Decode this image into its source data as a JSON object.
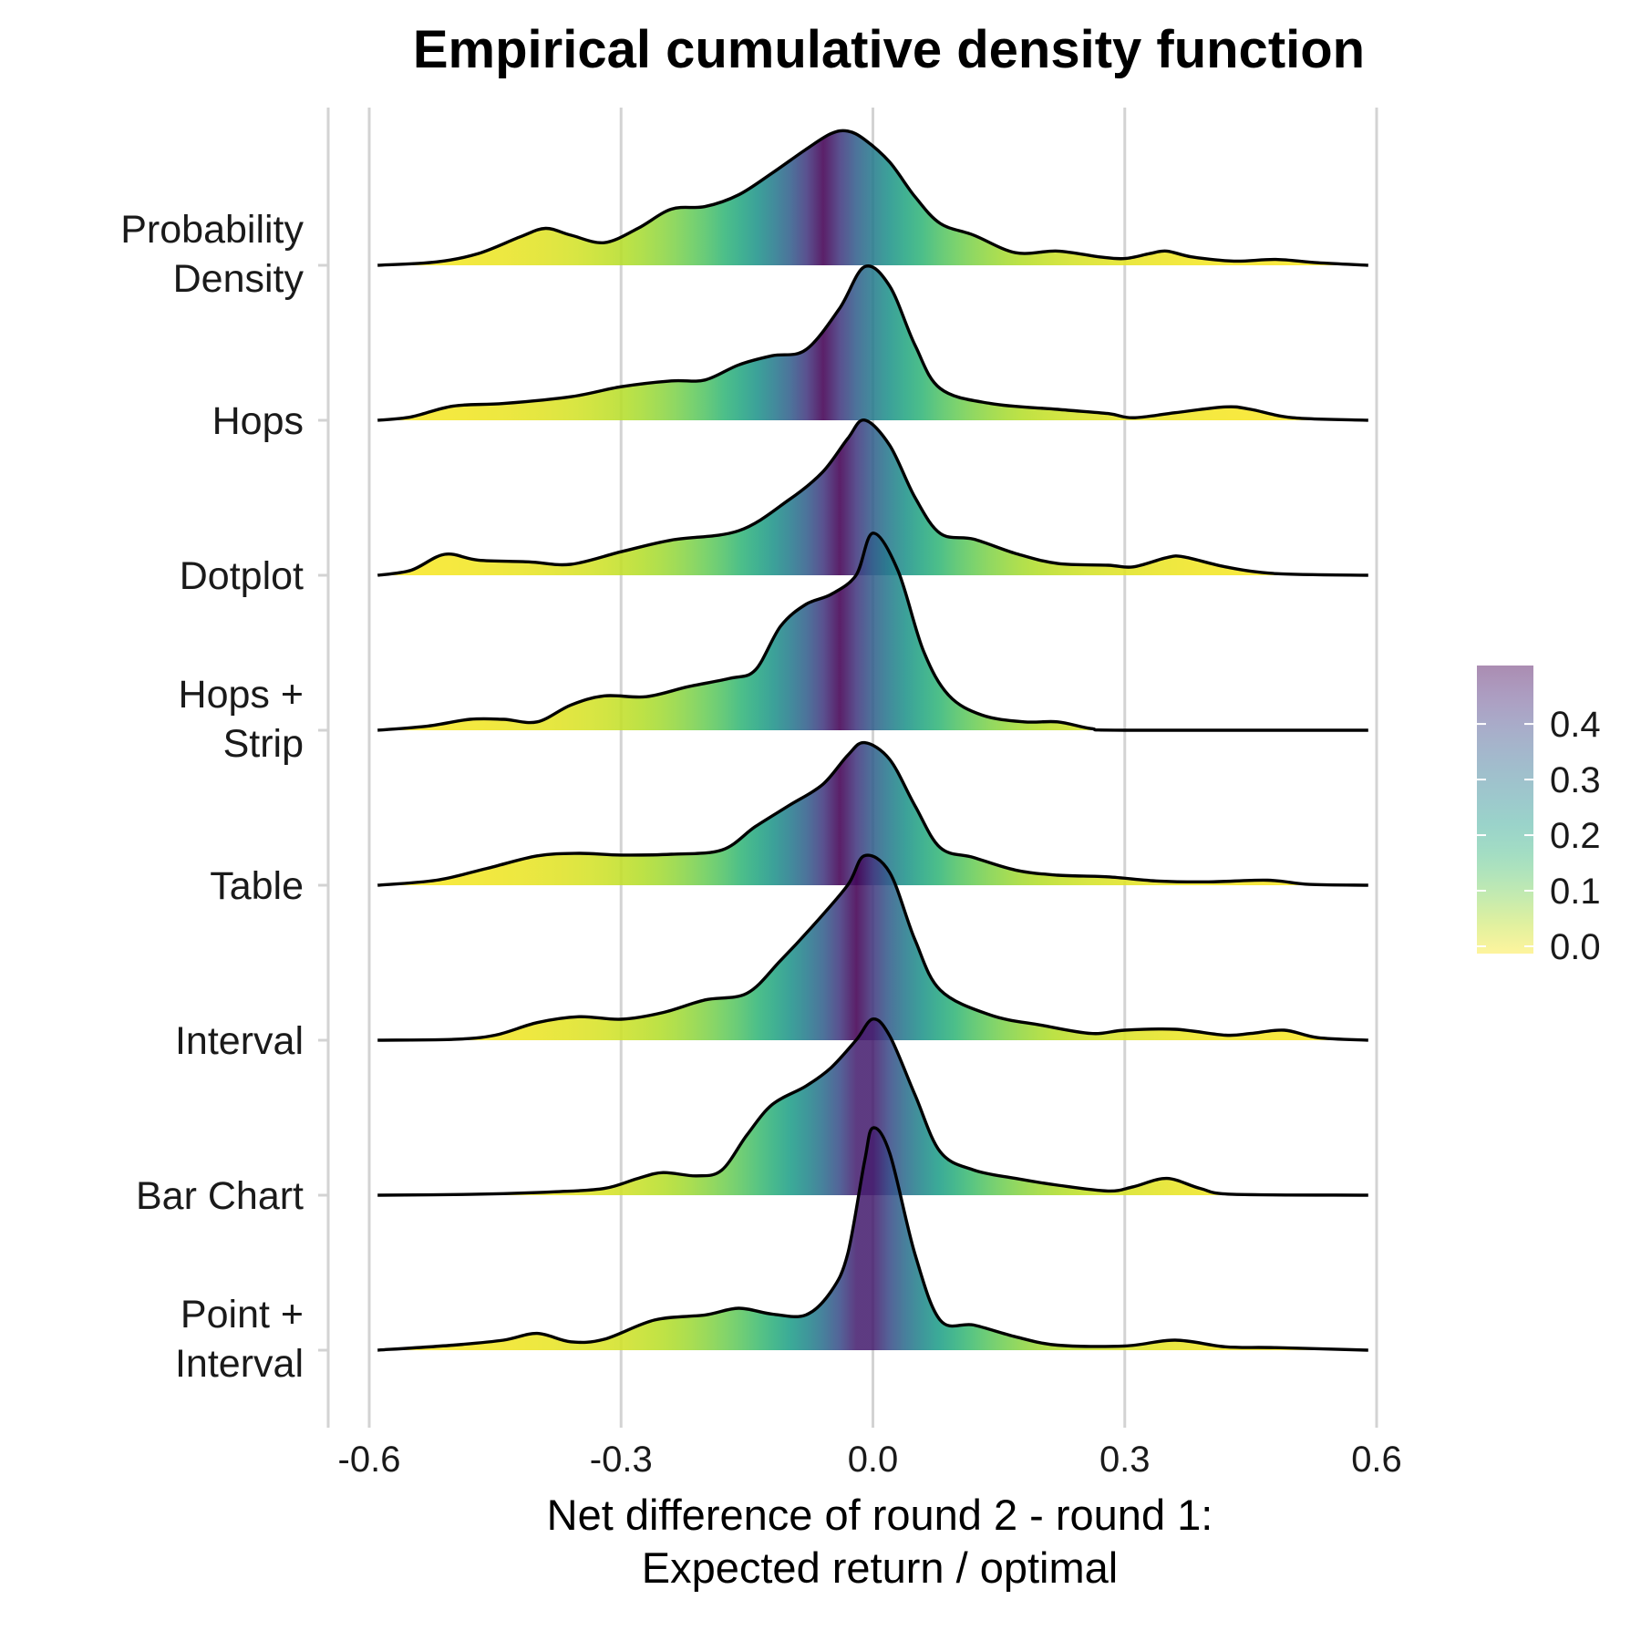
{
  "chart_data": {
    "type": "ridgeline",
    "title": "Empirical cumulative density function",
    "xlabel_lines": [
      "Net difference of round 2 - round 1:",
      "Expected return / optimal"
    ],
    "x_ticks": [
      -0.6,
      -0.3,
      0.0,
      0.3,
      0.6
    ],
    "x_tick_labels": [
      "-0.6",
      "-0.3",
      "0.0",
      "0.3",
      "0.6"
    ],
    "xlim": [
      -0.65,
      0.6
    ],
    "grid": true,
    "colormap": "viridis (fill = tail probability, max 0.5 at the median)",
    "legend": {
      "position": "right",
      "ticks": [
        "0.0",
        "0.1",
        "0.2",
        "0.3",
        "0.4"
      ],
      "range": [
        0,
        0.5
      ]
    },
    "series": [
      {
        "name": "Probability Density",
        "label_lines": [
          "Probability",
          "Density"
        ],
        "median": -0.06,
        "points": [
          [
            -0.59,
            0
          ],
          [
            -0.52,
            0.04
          ],
          [
            -0.47,
            0.14
          ],
          [
            -0.42,
            0.34
          ],
          [
            -0.39,
            0.44
          ],
          [
            -0.36,
            0.36
          ],
          [
            -0.32,
            0.27
          ],
          [
            -0.28,
            0.44
          ],
          [
            -0.24,
            0.67
          ],
          [
            -0.2,
            0.7
          ],
          [
            -0.16,
            0.84
          ],
          [
            -0.12,
            1.1
          ],
          [
            -0.08,
            1.38
          ],
          [
            -0.05,
            1.57
          ],
          [
            -0.03,
            1.6
          ],
          [
            -0.01,
            1.5
          ],
          [
            0.02,
            1.23
          ],
          [
            0.05,
            0.82
          ],
          [
            0.08,
            0.5
          ],
          [
            0.12,
            0.36
          ],
          [
            0.17,
            0.15
          ],
          [
            0.22,
            0.17
          ],
          [
            0.27,
            0.1
          ],
          [
            0.3,
            0.08
          ],
          [
            0.33,
            0.14
          ],
          [
            0.35,
            0.17
          ],
          [
            0.38,
            0.1
          ],
          [
            0.43,
            0.05
          ],
          [
            0.48,
            0.07
          ],
          [
            0.53,
            0.03
          ],
          [
            0.59,
            0
          ]
        ]
      },
      {
        "name": "Hops",
        "label_lines": [
          "Hops"
        ],
        "median": -0.06,
        "points": [
          [
            -0.59,
            0
          ],
          [
            -0.55,
            0.04
          ],
          [
            -0.5,
            0.17
          ],
          [
            -0.44,
            0.2
          ],
          [
            -0.36,
            0.28
          ],
          [
            -0.3,
            0.4
          ],
          [
            -0.24,
            0.47
          ],
          [
            -0.2,
            0.48
          ],
          [
            -0.16,
            0.66
          ],
          [
            -0.12,
            0.77
          ],
          [
            -0.08,
            0.84
          ],
          [
            -0.04,
            1.33
          ],
          [
            -0.01,
            1.83
          ],
          [
            0.02,
            1.6
          ],
          [
            0.05,
            0.9
          ],
          [
            0.08,
            0.38
          ],
          [
            0.14,
            0.2
          ],
          [
            0.22,
            0.13
          ],
          [
            0.28,
            0.08
          ],
          [
            0.31,
            0.03
          ],
          [
            0.36,
            0.09
          ],
          [
            0.42,
            0.16
          ],
          [
            0.45,
            0.13
          ],
          [
            0.5,
            0.03
          ],
          [
            0.59,
            0
          ]
        ]
      },
      {
        "name": "Dotplot",
        "label_lines": [
          "Dotplot"
        ],
        "median": -0.04,
        "points": [
          [
            -0.59,
            0
          ],
          [
            -0.55,
            0.06
          ],
          [
            -0.51,
            0.25
          ],
          [
            -0.47,
            0.18
          ],
          [
            -0.41,
            0.16
          ],
          [
            -0.36,
            0.13
          ],
          [
            -0.3,
            0.28
          ],
          [
            -0.24,
            0.42
          ],
          [
            -0.16,
            0.53
          ],
          [
            -0.1,
            0.9
          ],
          [
            -0.06,
            1.23
          ],
          [
            -0.03,
            1.63
          ],
          [
            -0.01,
            1.85
          ],
          [
            0.02,
            1.55
          ],
          [
            0.05,
            0.93
          ],
          [
            0.08,
            0.5
          ],
          [
            0.12,
            0.43
          ],
          [
            0.17,
            0.26
          ],
          [
            0.22,
            0.14
          ],
          [
            0.28,
            0.12
          ],
          [
            0.31,
            0.1
          ],
          [
            0.35,
            0.21
          ],
          [
            0.37,
            0.22
          ],
          [
            0.42,
            0.1
          ],
          [
            0.48,
            0.02
          ],
          [
            0.59,
            0
          ]
        ]
      },
      {
        "name": "Hops + Strip",
        "label_lines": [
          "Hops +",
          "Strip"
        ],
        "median": -0.04,
        "points": [
          [
            -0.59,
            0
          ],
          [
            -0.53,
            0.05
          ],
          [
            -0.48,
            0.13
          ],
          [
            -0.44,
            0.13
          ],
          [
            -0.4,
            0.1
          ],
          [
            -0.36,
            0.3
          ],
          [
            -0.32,
            0.41
          ],
          [
            -0.27,
            0.4
          ],
          [
            -0.22,
            0.52
          ],
          [
            -0.17,
            0.62
          ],
          [
            -0.14,
            0.72
          ],
          [
            -0.11,
            1.24
          ],
          [
            -0.08,
            1.5
          ],
          [
            -0.05,
            1.62
          ],
          [
            -0.02,
            1.85
          ],
          [
            0.0,
            2.35
          ],
          [
            0.03,
            1.9
          ],
          [
            0.06,
            0.95
          ],
          [
            0.09,
            0.42
          ],
          [
            0.13,
            0.18
          ],
          [
            0.18,
            0.1
          ],
          [
            0.22,
            0.1
          ],
          [
            0.26,
            0.02
          ],
          [
            0.3,
            0
          ],
          [
            0.59,
            0
          ]
        ]
      },
      {
        "name": "Table",
        "label_lines": [
          "Table"
        ],
        "median": -0.04,
        "points": [
          [
            -0.59,
            0
          ],
          [
            -0.52,
            0.06
          ],
          [
            -0.46,
            0.2
          ],
          [
            -0.4,
            0.35
          ],
          [
            -0.35,
            0.38
          ],
          [
            -0.3,
            0.36
          ],
          [
            -0.24,
            0.37
          ],
          [
            -0.18,
            0.42
          ],
          [
            -0.14,
            0.7
          ],
          [
            -0.1,
            0.95
          ],
          [
            -0.06,
            1.2
          ],
          [
            -0.03,
            1.55
          ],
          [
            -0.01,
            1.7
          ],
          [
            0.02,
            1.5
          ],
          [
            0.05,
            0.95
          ],
          [
            0.08,
            0.45
          ],
          [
            0.12,
            0.33
          ],
          [
            0.17,
            0.18
          ],
          [
            0.22,
            0.12
          ],
          [
            0.28,
            0.1
          ],
          [
            0.34,
            0.05
          ],
          [
            0.4,
            0.04
          ],
          [
            0.47,
            0.06
          ],
          [
            0.52,
            0.01
          ],
          [
            0.59,
            0
          ]
        ]
      },
      {
        "name": "Interval",
        "label_lines": [
          "Interval"
        ],
        "median": -0.02,
        "points": [
          [
            -0.59,
            0
          ],
          [
            -0.5,
            0.01
          ],
          [
            -0.45,
            0.06
          ],
          [
            -0.4,
            0.21
          ],
          [
            -0.35,
            0.28
          ],
          [
            -0.3,
            0.25
          ],
          [
            -0.25,
            0.33
          ],
          [
            -0.2,
            0.48
          ],
          [
            -0.15,
            0.56
          ],
          [
            -0.11,
            0.95
          ],
          [
            -0.07,
            1.38
          ],
          [
            -0.03,
            1.85
          ],
          [
            -0.01,
            2.2
          ],
          [
            0.02,
            2.0
          ],
          [
            0.05,
            1.2
          ],
          [
            0.08,
            0.6
          ],
          [
            0.14,
            0.3
          ],
          [
            0.2,
            0.18
          ],
          [
            0.26,
            0.08
          ],
          [
            0.3,
            0.12
          ],
          [
            0.36,
            0.13
          ],
          [
            0.42,
            0.06
          ],
          [
            0.45,
            0.08
          ],
          [
            0.49,
            0.12
          ],
          [
            0.53,
            0.03
          ],
          [
            0.59,
            0
          ]
        ]
      },
      {
        "name": "Bar Chart",
        "label_lines": [
          "Bar Chart"
        ],
        "median": -0.01,
        "points": [
          [
            -0.59,
            0
          ],
          [
            -0.48,
            0.01
          ],
          [
            -0.38,
            0.04
          ],
          [
            -0.32,
            0.08
          ],
          [
            -0.28,
            0.2
          ],
          [
            -0.25,
            0.27
          ],
          [
            -0.21,
            0.23
          ],
          [
            -0.18,
            0.3
          ],
          [
            -0.15,
            0.72
          ],
          [
            -0.12,
            1.08
          ],
          [
            -0.08,
            1.3
          ],
          [
            -0.05,
            1.52
          ],
          [
            -0.02,
            1.85
          ],
          [
            0.0,
            2.1
          ],
          [
            0.02,
            1.9
          ],
          [
            0.05,
            1.2
          ],
          [
            0.08,
            0.52
          ],
          [
            0.12,
            0.3
          ],
          [
            0.17,
            0.2
          ],
          [
            0.22,
            0.12
          ],
          [
            0.28,
            0.05
          ],
          [
            0.31,
            0.1
          ],
          [
            0.35,
            0.2
          ],
          [
            0.39,
            0.08
          ],
          [
            0.43,
            0.01
          ],
          [
            0.59,
            0
          ]
        ]
      },
      {
        "name": "Point + Interval",
        "label_lines": [
          "Point +",
          "Interval"
        ],
        "median": -0.01,
        "points": [
          [
            -0.59,
            0
          ],
          [
            -0.5,
            0.06
          ],
          [
            -0.44,
            0.12
          ],
          [
            -0.4,
            0.2
          ],
          [
            -0.36,
            0.1
          ],
          [
            -0.32,
            0.13
          ],
          [
            -0.26,
            0.36
          ],
          [
            -0.2,
            0.42
          ],
          [
            -0.16,
            0.5
          ],
          [
            -0.12,
            0.43
          ],
          [
            -0.08,
            0.42
          ],
          [
            -0.05,
            0.7
          ],
          [
            -0.03,
            1.15
          ],
          [
            -0.01,
            2.25
          ],
          [
            0.0,
            2.65
          ],
          [
            0.02,
            2.35
          ],
          [
            0.05,
            1.15
          ],
          [
            0.08,
            0.36
          ],
          [
            0.12,
            0.3
          ],
          [
            0.17,
            0.16
          ],
          [
            0.22,
            0.06
          ],
          [
            0.3,
            0.05
          ],
          [
            0.36,
            0.12
          ],
          [
            0.42,
            0.04
          ],
          [
            0.48,
            0.03
          ],
          [
            0.59,
            0
          ]
        ]
      }
    ]
  }
}
